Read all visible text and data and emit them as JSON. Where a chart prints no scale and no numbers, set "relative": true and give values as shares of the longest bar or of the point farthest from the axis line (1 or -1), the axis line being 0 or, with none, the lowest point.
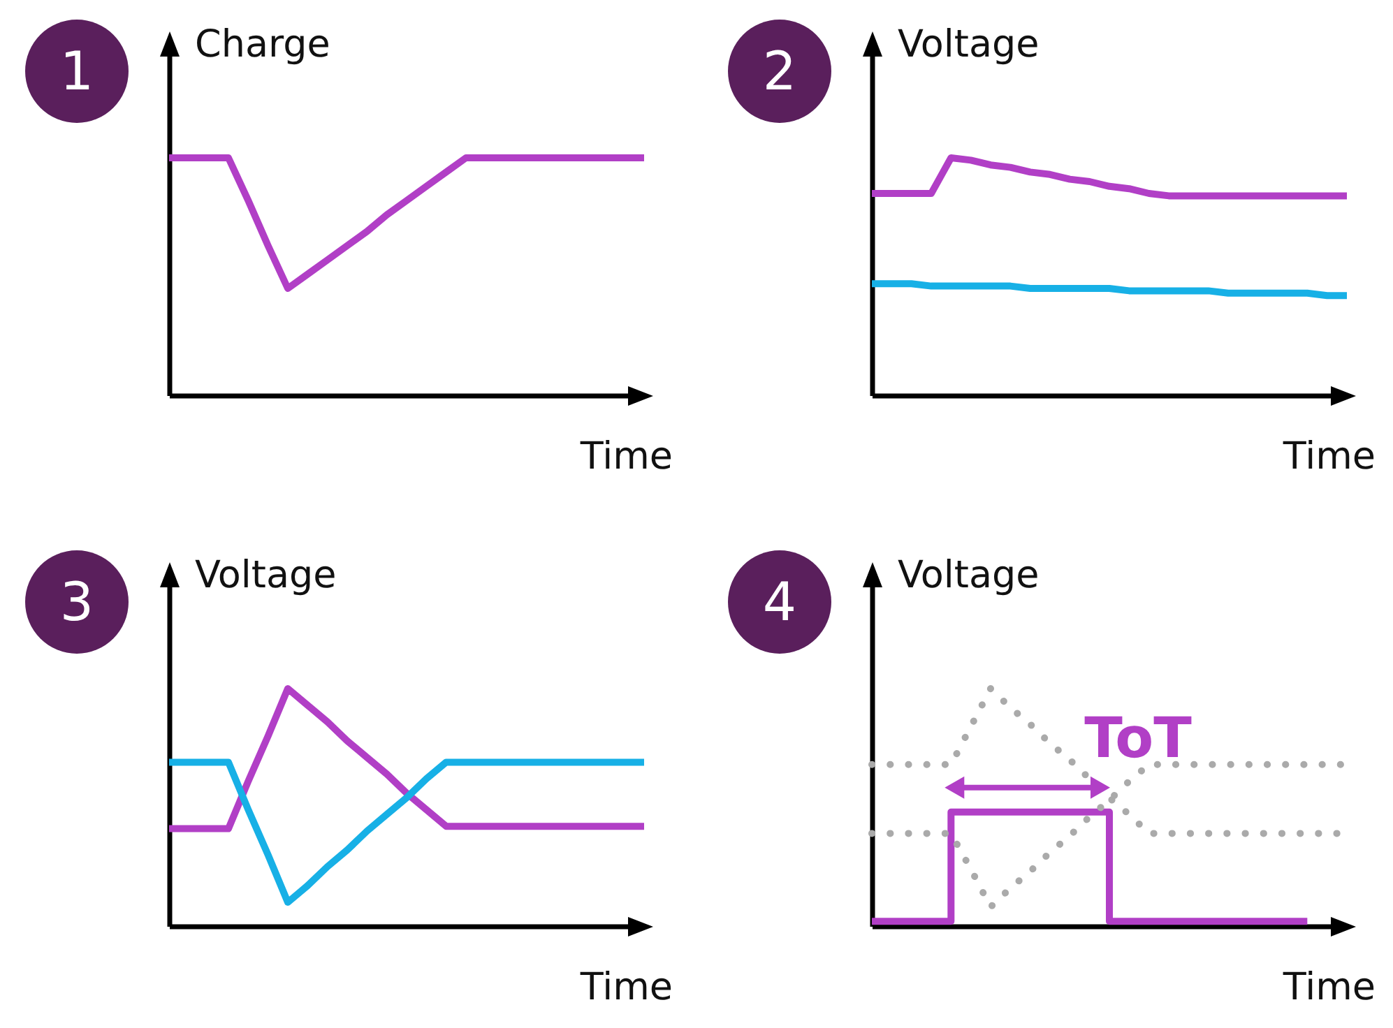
{
  "chart_data": [
    {
      "type": "line",
      "title": "1",
      "ylabel": "Charge",
      "xlabel": "Time",
      "relative": true,
      "categories": [
        null,
        null,
        null,
        null,
        null,
        null,
        null,
        null,
        null,
        null,
        null,
        null,
        null,
        null,
        null,
        null,
        null,
        null,
        null,
        null,
        null,
        null,
        null,
        null,
        null
      ],
      "series": [
        {
          "color": "#b13fc6",
          "values": [
            1,
            1,
            1,
            1,
            0.82,
            0.63,
            0.45,
            0.51,
            0.57,
            0.63,
            0.69,
            0.76,
            0.82,
            0.88,
            0.94,
            1,
            1,
            1,
            1,
            1,
            1,
            1,
            1,
            1,
            1
          ]
        }
      ]
    },
    {
      "type": "line",
      "title": "2",
      "ylabel": "Voltage",
      "xlabel": "Time",
      "relative": true,
      "categories": [
        null,
        null,
        null,
        null,
        null,
        null,
        null,
        null,
        null,
        null,
        null,
        null,
        null,
        null,
        null,
        null,
        null,
        null,
        null,
        null,
        null,
        null,
        null,
        null,
        null
      ],
      "series": [
        {
          "color": "#b13fc6",
          "values": [
            0.85,
            0.85,
            0.85,
            0.85,
            1,
            0.99,
            0.97,
            0.96,
            0.94,
            0.93,
            0.91,
            0.9,
            0.88,
            0.87,
            0.85,
            0.84,
            0.84,
            0.84,
            0.84,
            0.84,
            0.84,
            0.84,
            0.84,
            0.84,
            0.84
          ]
        },
        {
          "color": "#17b0e6",
          "values": [
            0.47,
            0.47,
            0.47,
            0.46,
            0.46,
            0.46,
            0.46,
            0.46,
            0.45,
            0.45,
            0.45,
            0.45,
            0.45,
            0.44,
            0.44,
            0.44,
            0.44,
            0.44,
            0.43,
            0.43,
            0.43,
            0.43,
            0.43,
            0.42,
            0.42
          ]
        }
      ]
    },
    {
      "type": "line",
      "title": "3",
      "ylabel": "Voltage",
      "xlabel": "Time",
      "relative": true,
      "categories": [
        null,
        null,
        null,
        null,
        null,
        null,
        null,
        null,
        null,
        null,
        null,
        null,
        null,
        null,
        null,
        null,
        null,
        null,
        null,
        null,
        null,
        null,
        null,
        null,
        null
      ],
      "series": [
        {
          "color": "#b13fc6",
          "values": [
            0.41,
            0.41,
            0.41,
            0.41,
            0.61,
            0.8,
            1,
            0.93,
            0.86,
            0.78,
            0.71,
            0.64,
            0.56,
            0.49,
            0.42,
            0.42,
            0.42,
            0.42,
            0.42,
            0.42,
            0.42,
            0.42,
            0.42,
            0.42,
            0.42
          ]
        },
        {
          "color": "#17b0e6",
          "values": [
            0.69,
            0.69,
            0.69,
            0.69,
            0.49,
            0.3,
            0.1,
            0.17,
            0.25,
            0.32,
            0.4,
            0.47,
            0.54,
            0.62,
            0.69,
            0.69,
            0.69,
            0.69,
            0.69,
            0.69,
            0.69,
            0.69,
            0.69,
            0.69,
            0.69
          ]
        }
      ]
    },
    {
      "type": "line",
      "title": "4",
      "ylabel": "Voltage",
      "xlabel": "Time",
      "relative": true,
      "annotations": [
        "ToT"
      ],
      "categories": [
        null,
        null,
        null,
        null,
        null,
        null,
        null,
        null,
        null,
        null,
        null,
        null,
        null,
        null,
        null,
        null,
        null,
        null,
        null,
        null,
        null,
        null,
        null,
        null,
        null
      ],
      "series": [
        {
          "type": "step",
          "color": "#b13fc6",
          "values": [
            0.02,
            0.02,
            0.02,
            0.02,
            0.48,
            0.48,
            0.48,
            0.48,
            0.48,
            0.48,
            0.48,
            0.48,
            0.02,
            0.02,
            0.02,
            0.02,
            0.02,
            0.02,
            0.02,
            0.02,
            0.02,
            0.02,
            0.02,
            null,
            null
          ]
        },
        {
          "color": "#aaaaaa",
          "line_style": "dotted",
          "values": [
            0.68,
            0.68,
            0.68,
            0.68,
            0.68,
            0.84,
            1,
            0.92,
            0.85,
            0.77,
            0.7,
            0.62,
            0.54,
            0.47,
            0.39,
            0.39,
            0.39,
            0.39,
            0.39,
            0.39,
            0.39,
            0.39,
            0.39,
            0.39,
            0.39
          ]
        },
        {
          "color": "#aaaaaa",
          "line_style": "dotted",
          "values": [
            0.39,
            0.39,
            0.39,
            0.39,
            0.39,
            0.24,
            0.08,
            0.16,
            0.23,
            0.31,
            0.38,
            0.46,
            0.53,
            0.61,
            0.68,
            0.68,
            0.68,
            0.68,
            0.68,
            0.68,
            0.68,
            0.68,
            0.68,
            0.68,
            0.68
          ]
        }
      ]
    }
  ]
}
